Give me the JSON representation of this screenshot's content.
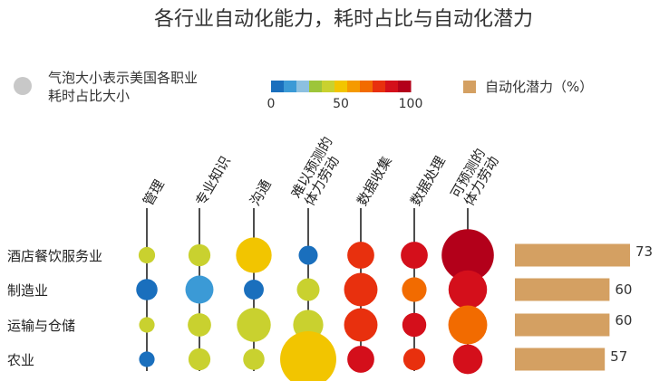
{
  "chart_data": {
    "type": "bubble-matrix",
    "title": "各行业自动化能力，耗时占比与自动化潜力",
    "legend": {
      "size_line1": "气泡大小表示美国各职业",
      "size_line2": "耗时占比大小",
      "scale_ticks": [
        "0",
        "50",
        "100"
      ],
      "scale_colors": [
        "#1a6fbd",
        "#3b9ad6",
        "#8cc0e0",
        "#9dc53a",
        "#c9d12f",
        "#f2c500",
        "#f59a00",
        "#f26b00",
        "#e8300e",
        "#d40f1b",
        "#b3001a"
      ],
      "potential_label": "自动化潜力（%）",
      "potential_color": "#d4a062"
    },
    "columns": [
      {
        "lines": [
          "管理"
        ]
      },
      {
        "lines": [
          "专业知识"
        ]
      },
      {
        "lines": [
          "沟通"
        ]
      },
      {
        "lines": [
          "难以预测的",
          "体力劳动"
        ]
      },
      {
        "lines": [
          "数据收集"
        ]
      },
      {
        "lines": [
          "数据处理"
        ]
      },
      {
        "lines": [
          "可预测的",
          "体力劳动"
        ]
      }
    ],
    "rows": [
      {
        "label": "酒店餐饮服务业",
        "potential": 73,
        "cells": [
          {
            "size": 0.9,
            "color": "#c9d12f"
          },
          {
            "size": 1.6,
            "color": "#c9d12f"
          },
          {
            "size": 4.2,
            "color": "#f2c500"
          },
          {
            "size": 1.2,
            "color": "#1a6fbd"
          },
          {
            "size": 2.4,
            "color": "#e8300e"
          },
          {
            "size": 2.4,
            "color": "#d40f1b"
          },
          {
            "size": 9.0,
            "color": "#b3001a"
          }
        ]
      },
      {
        "label": "制造业",
        "potential": 60,
        "cells": [
          {
            "size": 1.5,
            "color": "#1a6fbd"
          },
          {
            "size": 2.6,
            "color": "#3b9ad6"
          },
          {
            "size": 1.3,
            "color": "#1a6fbd"
          },
          {
            "size": 1.7,
            "color": "#c9d12f"
          },
          {
            "size": 3.7,
            "color": "#e8300e"
          },
          {
            "size": 2.0,
            "color": "#f26b00"
          },
          {
            "size": 4.9,
            "color": "#d40f1b"
          }
        ]
      },
      {
        "label": "运输与仓储",
        "potential": 60,
        "cells": [
          {
            "size": 0.8,
            "color": "#c9d12f"
          },
          {
            "size": 1.8,
            "color": "#c9d12f"
          },
          {
            "size": 3.8,
            "color": "#c9d12f"
          },
          {
            "size": 3.0,
            "color": "#c9d12f"
          },
          {
            "size": 3.7,
            "color": "#e8300e"
          },
          {
            "size": 1.9,
            "color": "#d40f1b"
          },
          {
            "size": 5.0,
            "color": "#f26b00"
          }
        ]
      },
      {
        "label": "农业",
        "potential": 57,
        "cells": [
          {
            "size": 0.8,
            "color": "#1a6fbd"
          },
          {
            "size": 1.6,
            "color": "#c9d12f"
          },
          {
            "size": 1.5,
            "color": "#c9d12f"
          },
          {
            "size": 10.4,
            "color": "#f2c500"
          },
          {
            "size": 2.4,
            "color": "#d40f1b"
          },
          {
            "size": 1.6,
            "color": "#e8300e"
          },
          {
            "size": 2.9,
            "color": "#d40f1b"
          }
        ]
      }
    ]
  }
}
